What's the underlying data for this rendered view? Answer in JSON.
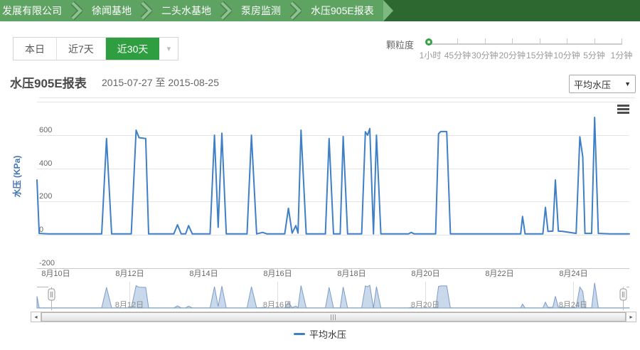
{
  "breadcrumb": {
    "items": [
      {
        "label": "发展有限公司"
      },
      {
        "label": "徐闻基地"
      },
      {
        "label": "二头水基地"
      },
      {
        "label": "泵房监测"
      },
      {
        "label": "水压905E报表"
      }
    ]
  },
  "toolbar": {
    "range_buttons": [
      {
        "label": "本日",
        "active": false
      },
      {
        "label": "近7天",
        "active": false
      },
      {
        "label": "近30天",
        "active": true
      }
    ],
    "more_caret": "▾",
    "granularity": {
      "label": "颗粒度",
      "options": [
        "1小时",
        "45分钟",
        "30分钟",
        "20分钟",
        "15分钟",
        "10分钟",
        "5分钟",
        "1分钟"
      ],
      "selected": "1小时"
    }
  },
  "report": {
    "title": "水压905E报表",
    "date_range": "2015-07-27 至 2015-08-25",
    "metric_select": {
      "value": "平均水压",
      "caret": "▼"
    }
  },
  "icons": {
    "scroll_left": "◂",
    "scroll_right": "▸"
  },
  "colors": {
    "accent_green": "#2f9e41",
    "series_blue": "#3e7fc6",
    "navigator_fill": "#c9d8ea",
    "navigator_stroke": "#7b9cc7"
  },
  "chart_data": {
    "type": "line",
    "title": "水压905E报表",
    "ylabel": "水压 (KPa)",
    "ylim": [
      -200,
      800
    ],
    "ytick_step": 200,
    "ytick_labels": [
      600,
      400,
      200,
      0,
      -200
    ],
    "grid": true,
    "legend_position": "bottom",
    "xticks": [
      {
        "day": 10,
        "label": "8月10日"
      },
      {
        "day": 12,
        "label": "8月12日"
      },
      {
        "day": 14,
        "label": "8月14日"
      },
      {
        "day": 16,
        "label": "8月16日"
      },
      {
        "day": 18,
        "label": "8月18日"
      },
      {
        "day": 20,
        "label": "8月20日"
      },
      {
        "day": 22,
        "label": "8月22日"
      },
      {
        "day": 24,
        "label": "8月24日"
      }
    ],
    "navigator_ticks": [
      {
        "day": 12,
        "label": "8月12日"
      },
      {
        "day": 16,
        "label": "8月16日"
      },
      {
        "day": 20,
        "label": "8月20日"
      },
      {
        "day": 24,
        "label": "8月24日"
      }
    ],
    "legend": {
      "label": "平均水压"
    },
    "series": [
      {
        "name": "平均水压",
        "color": "#3e7fc6",
        "points": [
          [
            9.5,
            330
          ],
          [
            9.56,
            8
          ],
          [
            9.8,
            5
          ],
          [
            10.6,
            5
          ],
          [
            11.25,
            5
          ],
          [
            11.38,
            580
          ],
          [
            11.52,
            5
          ],
          [
            12.05,
            5
          ],
          [
            12.18,
            630
          ],
          [
            12.26,
            585
          ],
          [
            12.44,
            580
          ],
          [
            12.52,
            5
          ],
          [
            13.2,
            5
          ],
          [
            13.3,
            60
          ],
          [
            13.4,
            5
          ],
          [
            13.52,
            5
          ],
          [
            13.6,
            55
          ],
          [
            13.7,
            5
          ],
          [
            14.18,
            5
          ],
          [
            14.3,
            600
          ],
          [
            14.4,
            45
          ],
          [
            14.5,
            612
          ],
          [
            14.62,
            5
          ],
          [
            15.18,
            5
          ],
          [
            15.3,
            600
          ],
          [
            15.44,
            5
          ],
          [
            15.6,
            14
          ],
          [
            15.72,
            5
          ],
          [
            16.2,
            5
          ],
          [
            16.3,
            160
          ],
          [
            16.4,
            10
          ],
          [
            16.5,
            55
          ],
          [
            16.56,
            10
          ],
          [
            16.64,
            630
          ],
          [
            16.78,
            5
          ],
          [
            17.3,
            5
          ],
          [
            17.4,
            580
          ],
          [
            17.52,
            5
          ],
          [
            17.7,
            5
          ],
          [
            17.78,
            592
          ],
          [
            17.9,
            5
          ],
          [
            18.28,
            5
          ],
          [
            18.38,
            620
          ],
          [
            18.44,
            600
          ],
          [
            18.5,
            640
          ],
          [
            18.6,
            5
          ],
          [
            18.68,
            600
          ],
          [
            18.8,
            5
          ],
          [
            19.55,
            5
          ],
          [
            19.62,
            14
          ],
          [
            19.7,
            5
          ],
          [
            20.28,
            5
          ],
          [
            20.36,
            608
          ],
          [
            20.42,
            622
          ],
          [
            20.58,
            622
          ],
          [
            20.68,
            5
          ],
          [
            21.5,
            5
          ],
          [
            22.5,
            5
          ],
          [
            22.58,
            5
          ],
          [
            22.63,
            110
          ],
          [
            22.7,
            5
          ],
          [
            23.18,
            5
          ],
          [
            23.25,
            165
          ],
          [
            23.32,
            20
          ],
          [
            23.45,
            22
          ],
          [
            23.52,
            330
          ],
          [
            23.6,
            22
          ],
          [
            23.72,
            20
          ],
          [
            24.08,
            8
          ],
          [
            24.18,
            590
          ],
          [
            24.26,
            470
          ],
          [
            24.32,
            8
          ],
          [
            24.5,
            8
          ],
          [
            24.58,
            707
          ],
          [
            24.68,
            8
          ],
          [
            25.0,
            5
          ],
          [
            25.52,
            5
          ]
        ]
      }
    ]
  }
}
